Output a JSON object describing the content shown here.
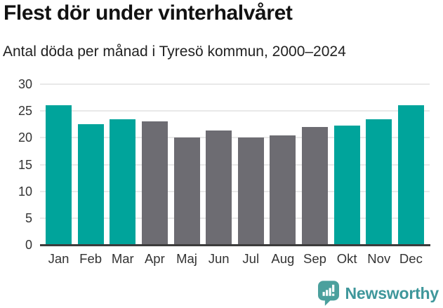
{
  "title": "Flest dör under vinterhalvåret",
  "subtitle": "Antal döda per månad i Tyresö kommun, 2000–2024",
  "chart_data": {
    "type": "bar",
    "categories": [
      "Jan",
      "Feb",
      "Mar",
      "Apr",
      "Maj",
      "Jun",
      "Jul",
      "Aug",
      "Sep",
      "Okt",
      "Nov",
      "Dec"
    ],
    "values": [
      26.1,
      22.6,
      23.5,
      23.1,
      20.1,
      21.4,
      20.0,
      20.4,
      22.0,
      22.3,
      23.4,
      26.1
    ],
    "highlighted": [
      true,
      true,
      true,
      false,
      false,
      false,
      false,
      false,
      false,
      true,
      true,
      true
    ],
    "title": "Flest dör under vinterhalvåret",
    "subtitle": "Antal döda per månad i Tyresö kommun, 2000–2024",
    "xlabel": "",
    "ylabel": "",
    "ylim": [
      0,
      30
    ],
    "yticks": [
      0,
      5,
      10,
      15,
      20,
      25,
      30
    ],
    "grid": true,
    "legend": "none",
    "highlight_color": "#00A49B",
    "base_color": "#6D6C72",
    "gridline_color": "#E9E9E9",
    "axis_line_color": "#3C3C3C"
  },
  "footer": {
    "brand": "Newsworthy",
    "logo_icon": "bar-chart-speech-bubble-icon",
    "brand_color": "#3F979B",
    "icon_color": "#4BA09D"
  }
}
